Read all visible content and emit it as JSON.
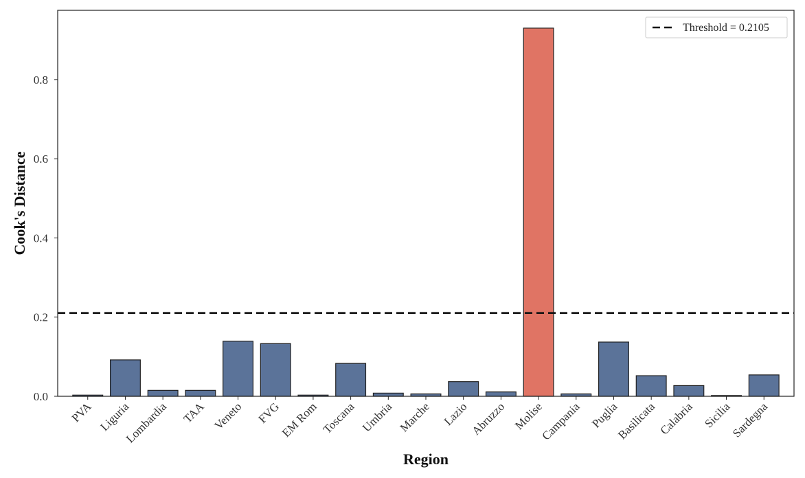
{
  "chart_data": {
    "type": "bar",
    "title": "",
    "xlabel": "Region",
    "ylabel": "Cook's Distance",
    "categories": [
      "PVA",
      "Liguria",
      "Lombardia",
      "TAA",
      "Veneto",
      "FVG",
      "EM Rom",
      "Toscana",
      "Umbria",
      "Marche",
      "Lazio",
      "Abruzzo",
      "Molise",
      "Campania",
      "Puglia",
      "Basilicata",
      "Calabria",
      "Sicilia",
      "Sardegna"
    ],
    "values": [
      0.003,
      0.092,
      0.015,
      0.015,
      0.139,
      0.133,
      0.003,
      0.083,
      0.008,
      0.006,
      0.037,
      0.011,
      0.93,
      0.006,
      0.137,
      0.052,
      0.027,
      0.002,
      0.054
    ],
    "highlight_index": 12,
    "ylim": [
      0,
      0.975
    ],
    "yticks": [
      0.0,
      0.2,
      0.4,
      0.6,
      0.8
    ],
    "ytick_labels": [
      "0.0",
      "0.2",
      "0.4",
      "0.6",
      "0.8"
    ],
    "threshold": {
      "value": 0.2105,
      "label": "Threshold = 0.2105",
      "style": "dashed"
    },
    "legend": {
      "position": "top-right"
    },
    "grid": false,
    "colors": {
      "bar": "#5b7399",
      "highlight": "#e07464",
      "edge": "#222222",
      "threshold": "#111111"
    }
  }
}
